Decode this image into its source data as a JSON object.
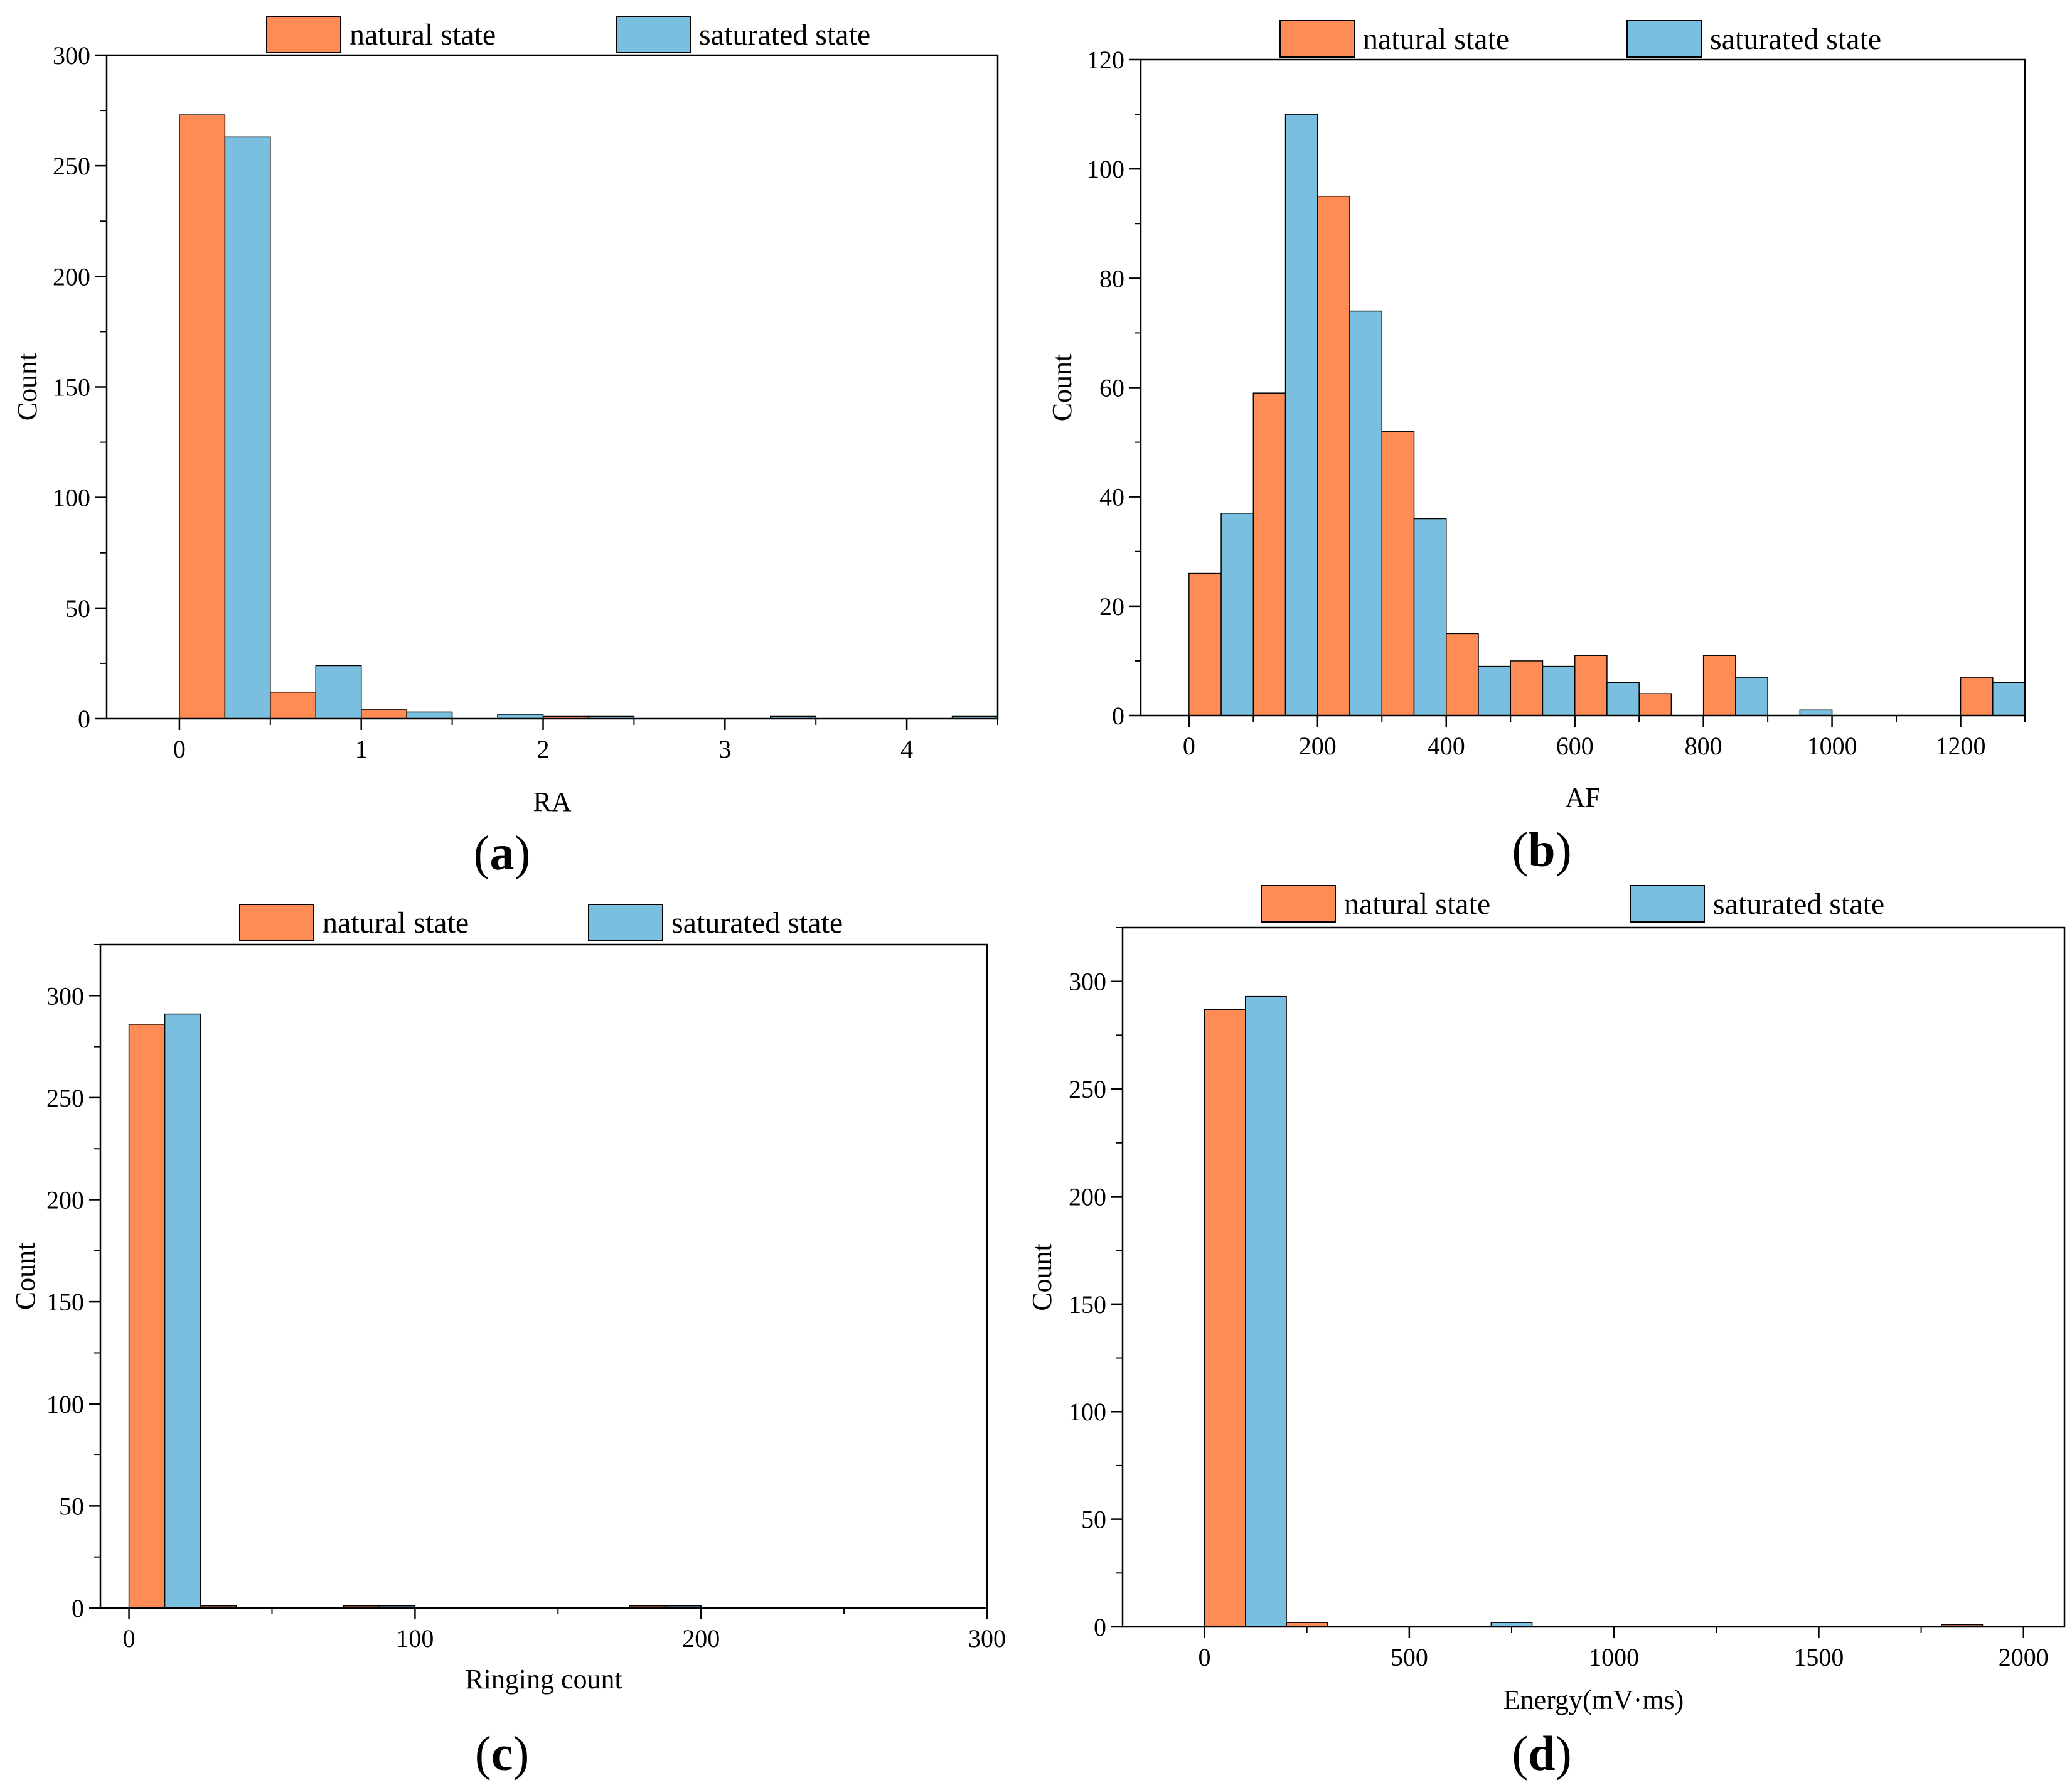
{
  "colors": {
    "natural": "#FF8C55",
    "saturated": "#7ABFDF",
    "stroke": "#000000"
  },
  "legend": {
    "natural_label": "natural state",
    "saturated_label": "saturated state"
  },
  "chart_data": [
    {
      "id": "a",
      "panel_label_pre": "(",
      "panel_label_letter": "a",
      "panel_label_post": ")",
      "type": "bar",
      "title": "",
      "xlabel": "RA",
      "ylabel": "Count",
      "xlim": [
        -0.4,
        4.5
      ],
      "ylim": [
        0,
        300
      ],
      "xticks": [
        0,
        1,
        2,
        3,
        4
      ],
      "xtick_labels": [
        "0",
        "1",
        "2",
        "3",
        "4"
      ],
      "yticks": [
        0,
        50,
        100,
        150,
        200,
        250,
        300
      ],
      "bin_width": 0.5,
      "bin_start": 0,
      "series": [
        {
          "name": "natural state",
          "values": [
            273,
            12,
            4,
            0,
            1,
            0,
            0,
            0,
            0
          ]
        },
        {
          "name": "saturated state",
          "values": [
            263,
            24,
            3,
            2,
            1,
            0,
            1,
            0,
            1
          ]
        }
      ]
    },
    {
      "id": "b",
      "panel_label_pre": "(",
      "panel_label_letter": "b",
      "panel_label_post": ")",
      "type": "bar",
      "title": "",
      "xlabel": "AF",
      "ylabel": "Count",
      "xlim": [
        -75,
        1300
      ],
      "ylim": [
        0,
        120
      ],
      "xticks": [
        0,
        200,
        400,
        600,
        800,
        1000,
        1200
      ],
      "xtick_labels": [
        "0",
        "200",
        "400",
        "600",
        "800",
        "1000",
        "1200"
      ],
      "yticks": [
        0,
        20,
        40,
        60,
        80,
        100,
        120
      ],
      "bin_width": 100,
      "bin_start": 0,
      "series": [
        {
          "name": "natural state",
          "values": [
            26,
            59,
            95,
            52,
            15,
            10,
            11,
            4,
            11,
            0,
            0,
            0,
            7
          ]
        },
        {
          "name": "saturated state",
          "values": [
            37,
            110,
            74,
            36,
            9,
            9,
            6,
            0,
            7,
            1,
            0,
            0,
            6
          ]
        }
      ]
    },
    {
      "id": "c",
      "panel_label_pre": "(",
      "panel_label_letter": "c",
      "panel_label_post": ")",
      "type": "bar",
      "title": "",
      "xlabel": "Ringing count",
      "ylabel": "Count",
      "xlim": [
        -10,
        300
      ],
      "ylim": [
        0,
        325
      ],
      "xticks": [
        0,
        100,
        200,
        300
      ],
      "xtick_labels": [
        "0",
        "100",
        "200",
        "300"
      ],
      "yticks": [
        0,
        50,
        100,
        150,
        200,
        250,
        300
      ],
      "bin_width": 25,
      "bin_start": 0,
      "series": [
        {
          "name": "natural state",
          "values": [
            286,
            1,
            0,
            1,
            0,
            0,
            0,
            1,
            0
          ]
        },
        {
          "name": "saturated state",
          "values": [
            291,
            0,
            0,
            1,
            0,
            0,
            0,
            1,
            0
          ]
        }
      ]
    },
    {
      "id": "d",
      "panel_label_pre": "(",
      "panel_label_letter": "d",
      "panel_label_post": ")",
      "type": "bar",
      "title": "",
      "xlabel": "Energy(mV·ms)",
      "ylabel": "Count",
      "xlim": [
        -200,
        2100
      ],
      "ylim": [
        0,
        325
      ],
      "xticks": [
        0,
        500,
        1000,
        1500,
        2000
      ],
      "xtick_labels": [
        "0",
        "500",
        "1000",
        "1500",
        "2000"
      ],
      "yticks": [
        0,
        50,
        100,
        150,
        200,
        250,
        300
      ],
      "bin_width": 200,
      "bin_start": 0,
      "series": [
        {
          "name": "natural state",
          "values": [
            287,
            2,
            0,
            0,
            0,
            0,
            0,
            0,
            0,
            1
          ]
        },
        {
          "name": "saturated state",
          "values": [
            293,
            0,
            0,
            2,
            0,
            0,
            0,
            0,
            0,
            0
          ]
        }
      ]
    }
  ]
}
